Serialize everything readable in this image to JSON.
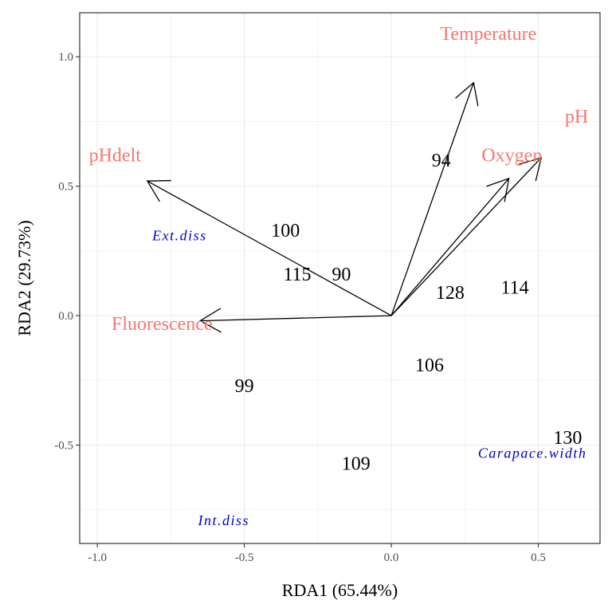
{
  "chart_data": {
    "type": "scatter",
    "subtype": "rda-biplot",
    "xlabel": "RDA1 (65.44%)",
    "ylabel": "RDA2 (29.73%)",
    "xlim": [
      -1.06,
      0.71
    ],
    "ylim": [
      -0.88,
      1.17
    ],
    "x_ticks": [
      -1.0,
      -0.5,
      0.0,
      0.5
    ],
    "x_tick_labels": [
      "-1.0",
      "-0.5",
      "0.0",
      "0.5"
    ],
    "y_ticks": [
      -0.5,
      0.0,
      0.5,
      1.0
    ],
    "y_tick_labels": [
      "-0.5",
      "0.0",
      "0.5",
      "1.0"
    ],
    "grid": true,
    "env_color": "#f8766d",
    "species_color": "#0000cc",
    "arrow_color": "#000000",
    "sites": [
      {
        "label": "94",
        "x": 0.17,
        "y": 0.6
      },
      {
        "label": "100",
        "x": -0.36,
        "y": 0.33
      },
      {
        "label": "115",
        "x": -0.32,
        "y": 0.16
      },
      {
        "label": "90",
        "x": -0.17,
        "y": 0.16
      },
      {
        "label": "128",
        "x": 0.2,
        "y": 0.09
      },
      {
        "label": "114",
        "x": 0.42,
        "y": 0.11
      },
      {
        "label": "106",
        "x": 0.13,
        "y": -0.19
      },
      {
        "label": "99",
        "x": -0.5,
        "y": -0.27
      },
      {
        "label": "130",
        "x": 0.6,
        "y": -0.47
      },
      {
        "label": "109",
        "x": -0.12,
        "y": -0.57
      }
    ],
    "env_arrows": [
      {
        "label": "Temperature",
        "x": 0.28,
        "y": 0.9,
        "label_x": 0.33,
        "label_y": 1.09
      },
      {
        "label": "pH",
        "x": 0.51,
        "y": 0.61,
        "label_x": 0.63,
        "label_y": 0.77
      },
      {
        "label": "Oxygen",
        "x": 0.4,
        "y": 0.53,
        "label_x": 0.41,
        "label_y": 0.62
      },
      {
        "label": "pHdelt",
        "x": -0.83,
        "y": 0.52,
        "label_x": -0.94,
        "label_y": 0.62
      },
      {
        "label": "Fluorescence",
        "x": -0.65,
        "y": -0.02,
        "label_x": -0.78,
        "label_y": -0.03
      }
    ],
    "species": [
      {
        "label": "Ext.diss",
        "x": -0.72,
        "y": 0.31
      },
      {
        "label": "Carapace.width",
        "x": 0.48,
        "y": -0.53
      },
      {
        "label": "Int.diss",
        "x": -0.57,
        "y": -0.79
      }
    ]
  }
}
